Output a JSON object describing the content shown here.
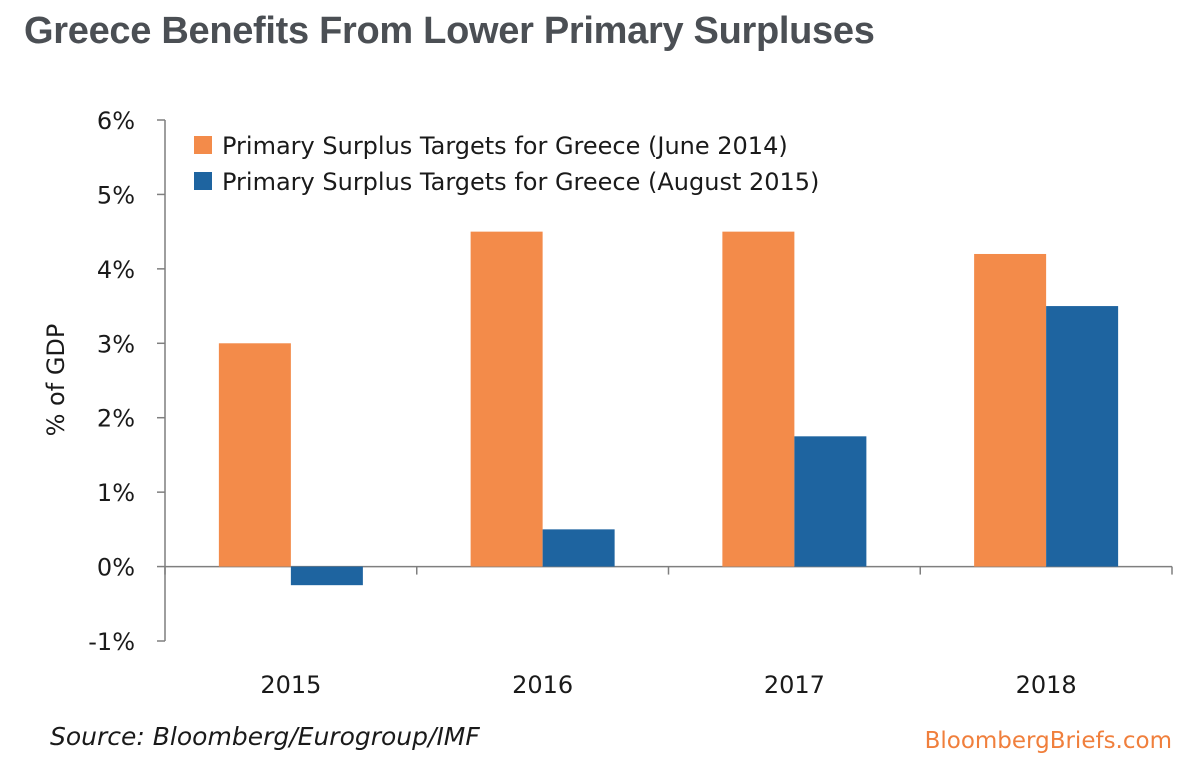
{
  "header": {
    "title": "Greece Benefits From Lower Primary Surpluses"
  },
  "footer": {
    "source": "Source: Bloomberg/Eurogroup/IMF",
    "brand": "BloombergBriefs.com"
  },
  "colors": {
    "series_june_2014": "#f38b4a",
    "series_august_2015": "#1e64a0",
    "brand": "#f07f3c",
    "title": "#4b4f54"
  },
  "chart_data": {
    "type": "bar",
    "title": "Greece Benefits From Lower Primary Surpluses",
    "xlabel": "",
    "ylabel": "% of GDP",
    "categories": [
      "2015",
      "2016",
      "2017",
      "2018"
    ],
    "series": [
      {
        "name": "Primary Surplus Targets for Greece (June 2014)",
        "values": [
          3.0,
          4.5,
          4.5,
          4.2
        ]
      },
      {
        "name": "Primary Surplus Targets for Greece (August 2015)",
        "values": [
          -0.25,
          0.5,
          1.75,
          3.5
        ]
      }
    ],
    "ylim": [
      -1,
      6
    ],
    "yticks": [
      -1,
      0,
      1,
      2,
      3,
      4,
      5,
      6
    ],
    "ytick_labels": [
      "-1%",
      "0%",
      "1%",
      "2%",
      "3%",
      "4%",
      "5%",
      "6%"
    ],
    "grid": false,
    "legend_position": "top-left"
  }
}
